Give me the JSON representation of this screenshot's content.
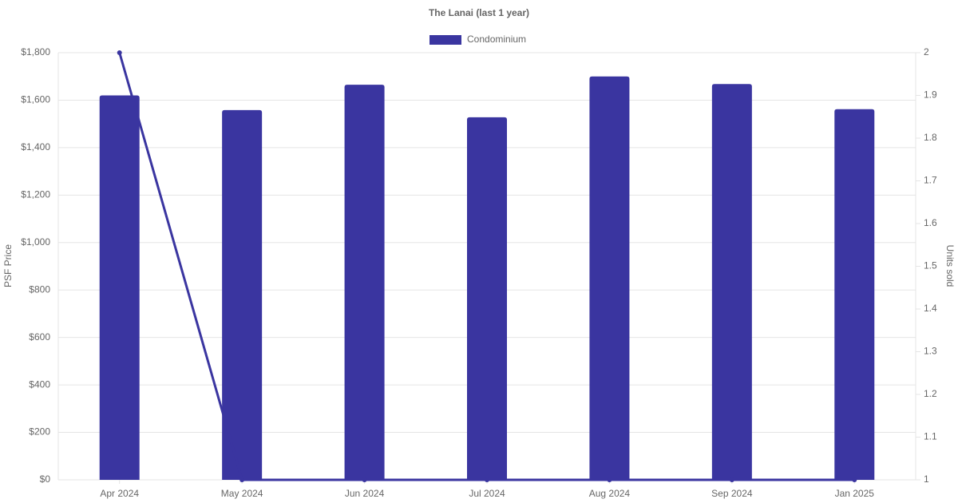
{
  "chart_data": {
    "type": "bar-line",
    "title": "The Lanai (last 1 year)",
    "ylabel": "PSF Price",
    "y2label": "Units sold",
    "categories": [
      "Apr 2024",
      "May 2024",
      "Jun 2024",
      "Jul 2024",
      "Aug 2024",
      "Sep 2024",
      "Jan 2025"
    ],
    "series": [
      {
        "name": "Condominium",
        "type": "bar",
        "color": "#3a35a0",
        "values": [
          1620,
          1558,
          1665,
          1528,
          1700,
          1668,
          1562
        ]
      },
      {
        "type": "line",
        "axis": "y2",
        "color": "#3a35a0",
        "values": [
          2,
          1,
          1,
          1,
          1,
          1,
          1
        ]
      }
    ],
    "ylim": [
      0,
      1800
    ],
    "yticks": [
      {
        "value": 0,
        "label": "$0"
      },
      {
        "value": 200,
        "label": "$200"
      },
      {
        "value": 400,
        "label": "$400"
      },
      {
        "value": 600,
        "label": "$600"
      },
      {
        "value": 800,
        "label": "$800"
      },
      {
        "value": 1000,
        "label": "$1,000"
      },
      {
        "value": 1200,
        "label": "$1,200"
      },
      {
        "value": 1400,
        "label": "$1,400"
      },
      {
        "value": 1600,
        "label": "$1,600"
      },
      {
        "value": 1800,
        "label": "$1,800"
      }
    ],
    "y2lim": [
      1,
      2
    ],
    "y2ticks": [
      1,
      1.1,
      1.2,
      1.3,
      1.4,
      1.5,
      1.6,
      1.7,
      1.8,
      1.9,
      2
    ],
    "grid": true,
    "legend": "top"
  }
}
